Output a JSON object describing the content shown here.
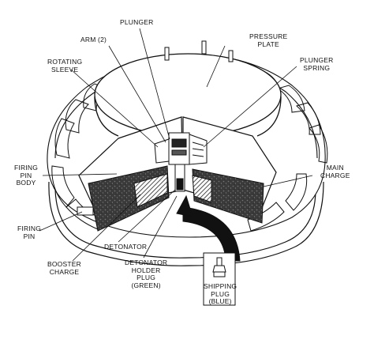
{
  "labels": {
    "plunger": "PLUNGER",
    "arm": "ARM (2)",
    "pressure_plate": [
      "PRESSURE",
      "PLATE"
    ],
    "rotating_sleeve": [
      "ROTATING",
      "SLEEVE"
    ],
    "plunger_spring": [
      "PLUNGER",
      "SPRING"
    ],
    "firing_pin_body": [
      "FIRING",
      "PIN",
      "BODY"
    ],
    "main_charge": [
      "MAIN",
      "CHARGE"
    ],
    "firing_pin": [
      "FIRING",
      "PIN"
    ],
    "booster_charge": [
      "BOOSTER",
      "CHARGE"
    ],
    "detonator": "DETONATOR",
    "detonator_holder_plug": [
      "DETONATOR",
      "HOLDER",
      "PLUG",
      "(GREEN)"
    ],
    "shipping_plug": [
      "SHIPPING",
      "PLUG",
      "(BLUE)"
    ]
  },
  "colors": {
    "ink": "#111111",
    "charge_fill": "#3a3a3a",
    "paper": "#ffffff"
  },
  "icons": {
    "insertion_arrow": "curved-arrow-icon",
    "shipping_plug": "plug-icon"
  }
}
